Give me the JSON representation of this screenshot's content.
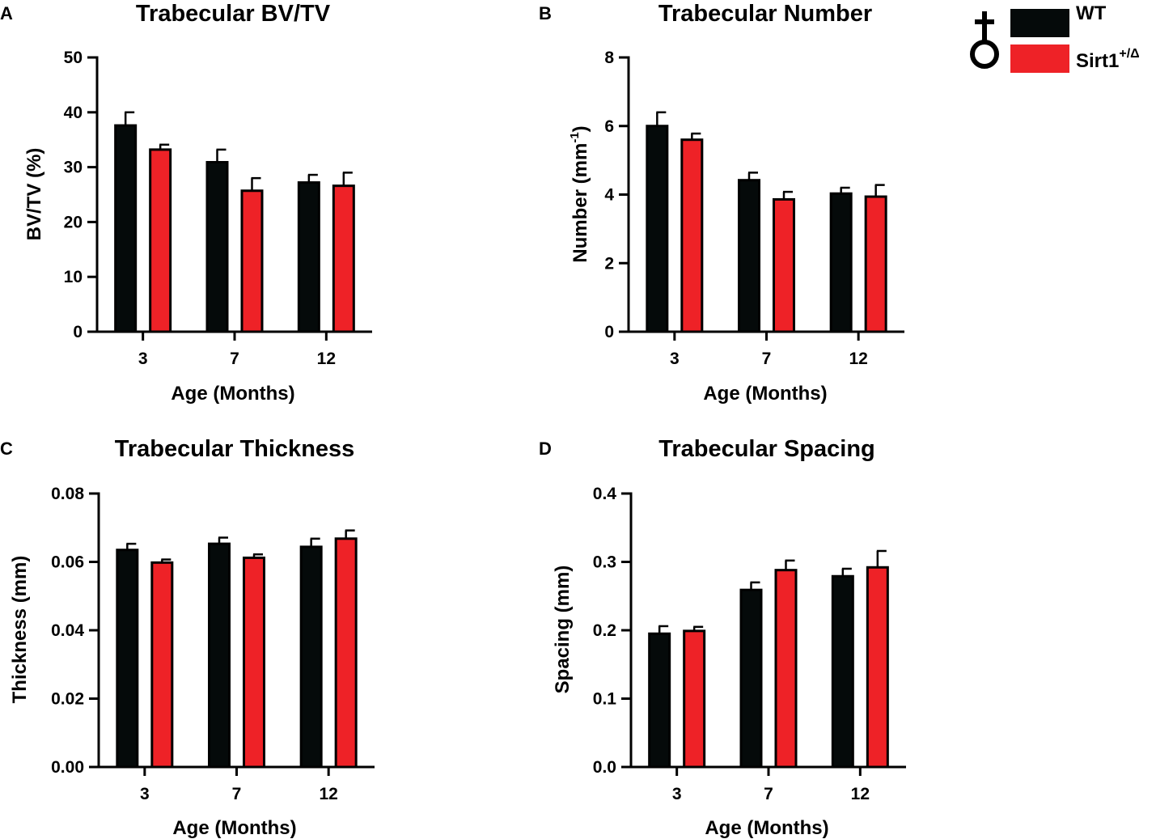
{
  "legend": {
    "sex_symbol": "female-symbol-icon",
    "entries": [
      {
        "name": "WT",
        "color": "#050a0a"
      },
      {
        "name": "Sirt1",
        "superscript": "+/Δ",
        "color": "#ee2227"
      }
    ]
  },
  "colors": {
    "wt": "#050a0a",
    "mut": "#ee2227",
    "outline": "#000000"
  },
  "chart_data": [
    {
      "panel": "A",
      "type": "bar",
      "title": "Trabecular BV/TV",
      "xlabel": "Age (Months)",
      "ylabel": "BV/TV (%)",
      "categories": [
        "3",
        "7",
        "12"
      ],
      "ylim": [
        0,
        50
      ],
      "yticks": [
        0,
        10,
        20,
        30,
        40,
        50
      ],
      "ytick_labels": [
        "0",
        "10",
        "20",
        "30",
        "40",
        "50"
      ],
      "series": [
        {
          "name": "WT",
          "values": [
            37.6,
            30.9,
            27.2
          ],
          "errors": [
            2.4,
            2.3,
            1.4
          ]
        },
        {
          "name": "Sirt1+/Δ",
          "values": [
            33.2,
            25.7,
            26.6
          ],
          "errors": [
            0.9,
            2.3,
            2.4
          ]
        }
      ]
    },
    {
      "panel": "B",
      "type": "bar",
      "title": "Trabecular Number",
      "xlabel": "Age (Months)",
      "ylabel": "Number (mm",
      "ylabel_sup": "-1",
      "ylabel_end": ")",
      "categories": [
        "3",
        "7",
        "12"
      ],
      "ylim": [
        0,
        8
      ],
      "yticks": [
        0,
        2,
        4,
        6,
        8
      ],
      "ytick_labels": [
        "0",
        "2",
        "4",
        "6",
        "8"
      ],
      "series": [
        {
          "name": "WT",
          "values": [
            6.0,
            4.42,
            4.03
          ],
          "errors": [
            0.4,
            0.22,
            0.17
          ]
        },
        {
          "name": "Sirt1+/Δ",
          "values": [
            5.6,
            3.86,
            3.94
          ],
          "errors": [
            0.18,
            0.22,
            0.34
          ]
        }
      ]
    },
    {
      "panel": "C",
      "type": "bar",
      "title": "Trabecular Thickness",
      "xlabel": "Age (Months)",
      "ylabel": "Thickness (mm)",
      "categories": [
        "3",
        "7",
        "12"
      ],
      "ylim": [
        0,
        0.08
      ],
      "yticks": [
        0,
        0.02,
        0.04,
        0.06,
        0.08
      ],
      "ytick_labels": [
        "0.00",
        "0.02",
        "0.04",
        "0.06",
        "0.08"
      ],
      "series": [
        {
          "name": "WT",
          "values": [
            0.0635,
            0.0653,
            0.0644
          ],
          "errors": [
            0.0018,
            0.0018,
            0.0024
          ]
        },
        {
          "name": "Sirt1+/Δ",
          "values": [
            0.0598,
            0.0612,
            0.0668
          ],
          "errors": [
            0.0009,
            0.001,
            0.0024
          ]
        }
      ]
    },
    {
      "panel": "D",
      "type": "bar",
      "title": "Trabecular Spacing",
      "xlabel": "Age (Months)",
      "ylabel": "Spacing (mm)",
      "categories": [
        "3",
        "7",
        "12"
      ],
      "ylim": [
        0,
        0.4
      ],
      "yticks": [
        0,
        0.1,
        0.2,
        0.3,
        0.4
      ],
      "ytick_labels": [
        "0.0",
        "0.1",
        "0.2",
        "0.3",
        "0.4"
      ],
      "series": [
        {
          "name": "WT",
          "values": [
            0.195,
            0.259,
            0.279
          ],
          "errors": [
            0.011,
            0.011,
            0.011
          ]
        },
        {
          "name": "Sirt1+/Δ",
          "values": [
            0.199,
            0.288,
            0.292
          ],
          "errors": [
            0.006,
            0.014,
            0.024
          ]
        }
      ]
    }
  ]
}
